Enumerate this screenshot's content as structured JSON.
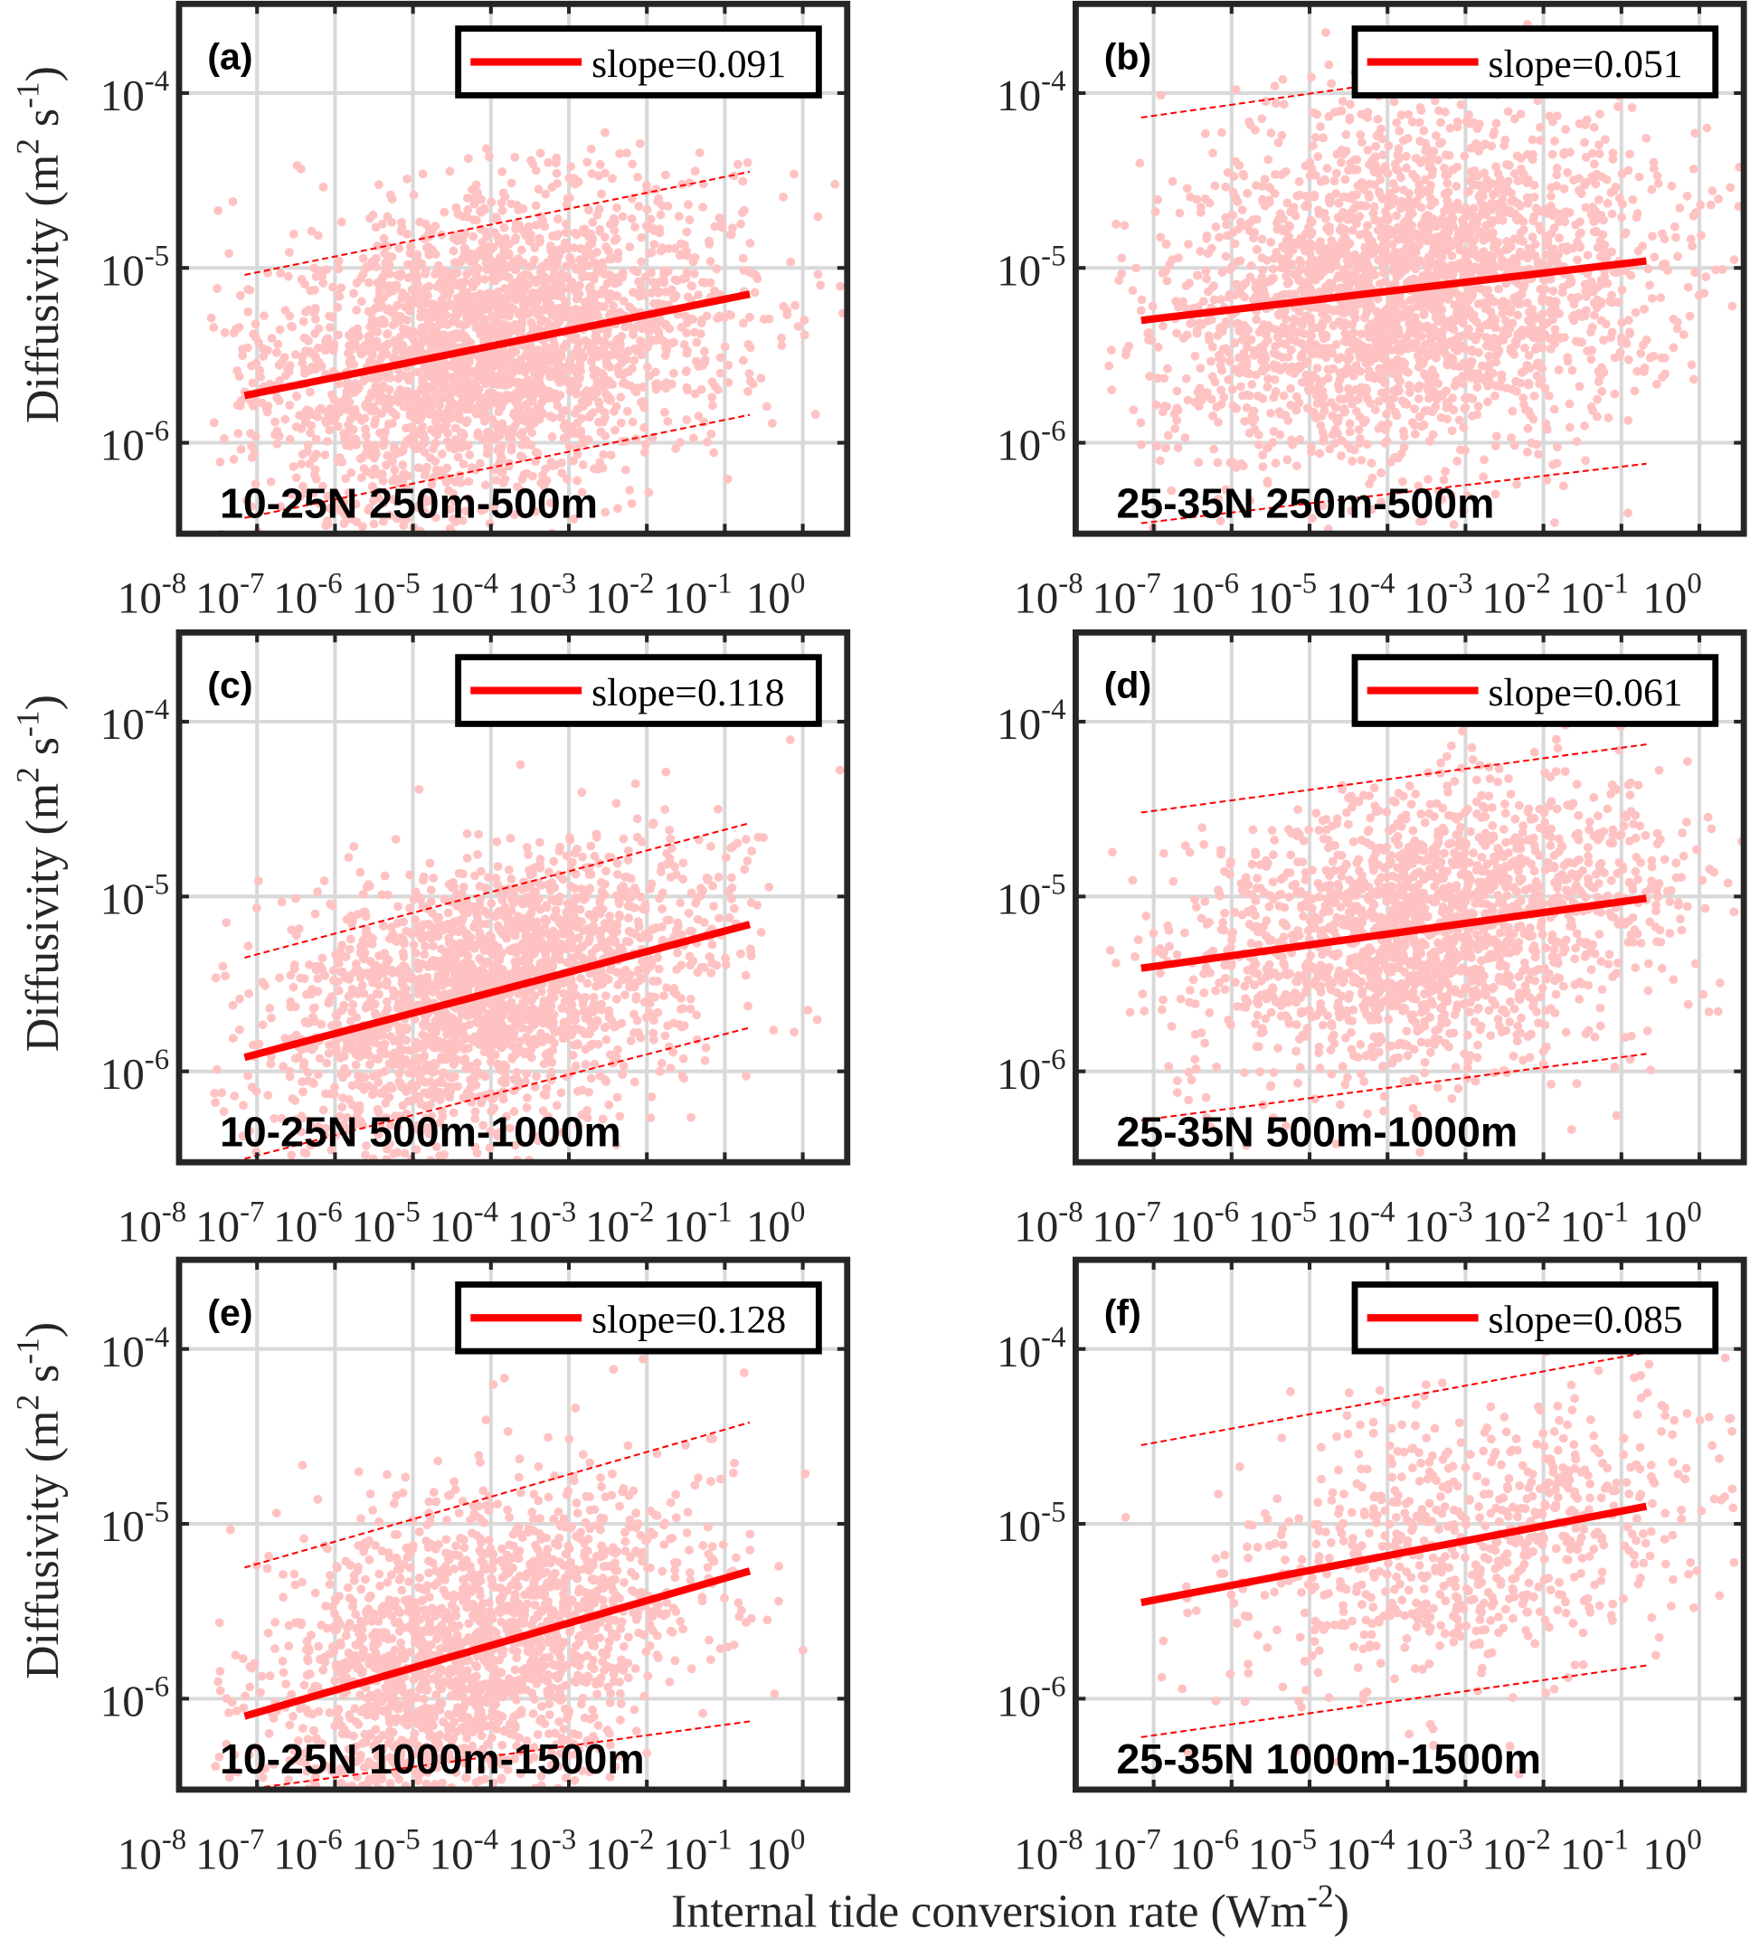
{
  "chart_data": [
    {
      "type": "scatter",
      "panel": "(a)",
      "region": "10-25N 250m-500m",
      "legend": "slope=0.091",
      "slope": 0.091,
      "fit": [
        [
          -7.16,
          -5.73
        ],
        [
          -0.68,
          -5.15
        ]
      ],
      "upper": [
        [
          -7.16,
          -5.04
        ],
        [
          -0.68,
          -4.45
        ]
      ],
      "lower": [
        [
          -7.16,
          -6.43
        ],
        [
          -0.68,
          -5.84
        ]
      ],
      "scatter_spec": {
        "n": 2600,
        "x_mean": -4.0,
        "x_sd": 1.5,
        "y_sd": 0.42
      }
    },
    {
      "type": "scatter",
      "panel": "(b)",
      "region": "25-35N 250m-500m",
      "legend": "slope=0.051",
      "slope": 0.051,
      "fit": [
        [
          -7.16,
          -5.3
        ],
        [
          -0.68,
          -4.96
        ]
      ],
      "upper": [
        [
          -7.16,
          -4.14
        ],
        [
          -0.68,
          -3.73
        ]
      ],
      "lower": [
        [
          -7.16,
          -6.46
        ],
        [
          -0.68,
          -6.12
        ]
      ],
      "scatter_spec": {
        "n": 2600,
        "x_mean": -3.8,
        "x_sd": 1.6,
        "y_sd": 0.5
      }
    },
    {
      "type": "scatter",
      "panel": "(c)",
      "region": "10-25N 500m-1000m",
      "legend": "slope=0.118",
      "slope": 0.118,
      "fit": [
        [
          -7.16,
          -5.92
        ],
        [
          -0.68,
          -5.16
        ]
      ],
      "upper": [
        [
          -7.16,
          -5.35
        ],
        [
          -0.68,
          -4.58
        ]
      ],
      "lower": [
        [
          -7.16,
          -6.5
        ],
        [
          -0.68,
          -5.75
        ]
      ],
      "scatter_spec": {
        "n": 2100,
        "x_mean": -4.0,
        "x_sd": 1.4,
        "y_sd": 0.38
      }
    },
    {
      "type": "scatter",
      "panel": "(d)",
      "region": "25-35N 500m-1000m",
      "legend": "slope=0.061",
      "slope": 0.061,
      "fit": [
        [
          -7.16,
          -5.41
        ],
        [
          -0.68,
          -5.01
        ]
      ],
      "upper": [
        [
          -7.16,
          -4.52
        ],
        [
          -0.68,
          -4.13
        ]
      ],
      "lower": [
        [
          -7.16,
          -6.28
        ],
        [
          -0.68,
          -5.9
        ]
      ],
      "scatter_spec": {
        "n": 1900,
        "x_mean": -3.5,
        "x_sd": 1.5,
        "y_sd": 0.4
      }
    },
    {
      "type": "scatter",
      "panel": "(e)",
      "region": "10-25N 1000m-1500m",
      "legend": "slope=0.128",
      "slope": 0.128,
      "fit": [
        [
          -7.16,
          -6.1
        ],
        [
          -0.68,
          -5.27
        ]
      ],
      "upper": [
        [
          -7.16,
          -5.25
        ],
        [
          -0.68,
          -4.42
        ]
      ],
      "lower": [
        [
          -7.16,
          -6.52
        ],
        [
          -0.68,
          -6.13
        ]
      ],
      "scatter_spec": {
        "n": 1900,
        "x_mean": -4.2,
        "x_sd": 1.4,
        "y_sd": 0.45
      }
    },
    {
      "type": "scatter",
      "panel": "(f)",
      "region": "25-35N 1000m-1500m",
      "legend": "slope=0.085",
      "slope": 0.085,
      "fit": [
        [
          -7.16,
          -5.45
        ],
        [
          -0.68,
          -4.9
        ]
      ],
      "upper": [
        [
          -7.16,
          -4.55
        ],
        [
          -0.68,
          -4.02
        ]
      ],
      "lower": [
        [
          -7.16,
          -6.22
        ],
        [
          -0.68,
          -5.81
        ]
      ],
      "scatter_spec": {
        "n": 750,
        "x_mean": -3.0,
        "x_sd": 1.5,
        "y_sd": 0.4
      }
    }
  ],
  "axes": {
    "xscale": "log",
    "yscale": "log",
    "xlim_log10": [
      -8,
      0.57
    ],
    "ylim_log10": [
      -6.52,
      -3.49
    ],
    "x_tick_base": "10",
    "x_tick_exponents": [
      "-8",
      "-7",
      "-6",
      "-5",
      "-4",
      "-3",
      "-2",
      "-1",
      "0"
    ],
    "y_tick_base": "10",
    "y_tick_exponents": [
      "-4",
      "-5",
      "-6"
    ],
    "ylabel": {
      "text": "Diffusivity (m",
      "sup1": "2",
      "mid": " s",
      "sup2": "-1",
      "end": ")"
    },
    "xlabel": {
      "text": "Internal tide conversion rate (Wm",
      "sup": "-2",
      "end": ")"
    },
    "grid": true
  },
  "colors": {
    "points": "#ffc2c2",
    "fit": "#ff0000",
    "grid": "#d9d9d9",
    "box": "#262626"
  }
}
